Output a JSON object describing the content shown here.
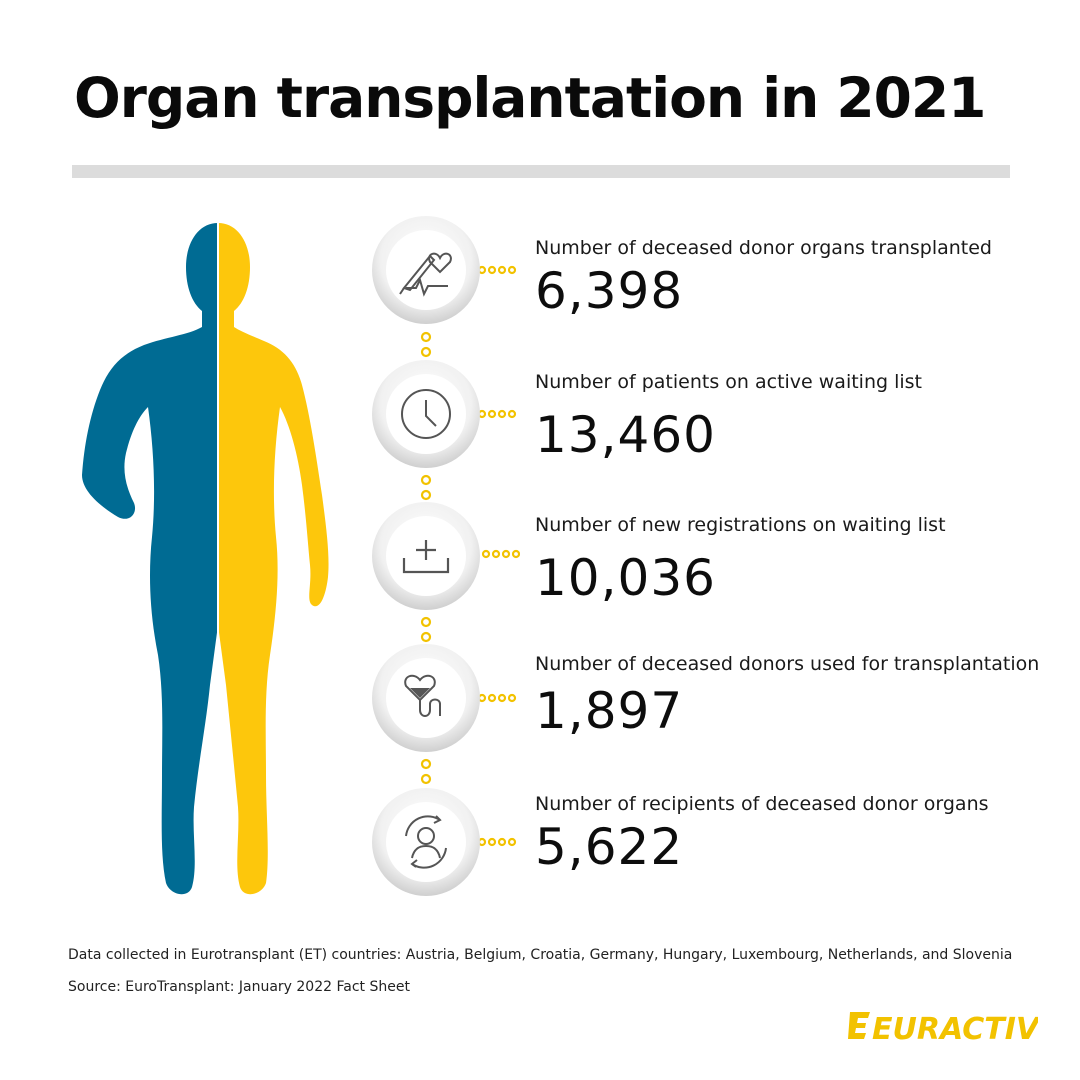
{
  "title": "Organ transplantation in 2021",
  "colors": {
    "left_half": "#006b93",
    "right_half": "#fdc70c",
    "accent": "#f2c200"
  },
  "stats": [
    {
      "icon": "scalpel-heart-icon",
      "label": "Number of deceased donor organs transplanted",
      "value": "6,398"
    },
    {
      "icon": "clock-icon",
      "label": "Number of patients on active waiting list",
      "value": "13,460"
    },
    {
      "icon": "add-to-tray-icon",
      "label": "Number of new registrations on waiting list",
      "value": "10,036"
    },
    {
      "icon": "heart-transfusion-icon",
      "label": "Number of deceased donors used for transplantation",
      "value": "1,897"
    },
    {
      "icon": "recipient-cycle-icon",
      "label": "Number of recipients of deceased donor organs",
      "value": "5,622"
    }
  ],
  "footer": {
    "note": "Data collected in Eurotransplant (ET) countries: Austria, Belgium, Croatia, Germany, Hungary, Luxembourg, Netherlands, and Slovenia",
    "source": "Source: EuroTransplant: January 2022 Fact Sheet"
  },
  "logo": {
    "text": "EURACTIV"
  }
}
